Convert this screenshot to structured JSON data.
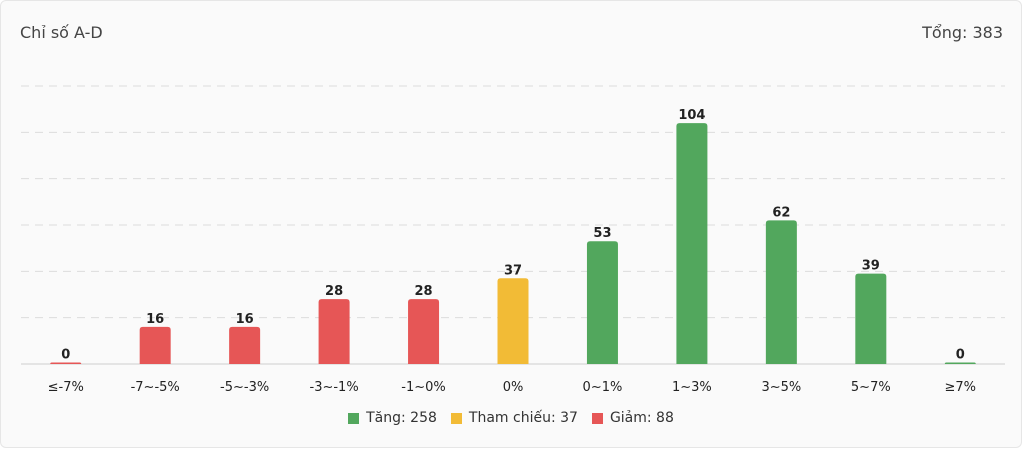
{
  "header": {
    "title": "Chỉ số A-D",
    "total_text": "Tổng: 383"
  },
  "colors": {
    "up": "#52a75d",
    "ref": "#f2bb36",
    "down": "#e65656"
  },
  "legend": [
    {
      "label": "Tăng: 258",
      "color_key": "up"
    },
    {
      "label": "Tham chiếu: 37",
      "color_key": "ref"
    },
    {
      "label": "Giảm: 88",
      "color_key": "down"
    }
  ],
  "chart_data": {
    "type": "bar",
    "title": "Chỉ số A-D",
    "xlabel": "",
    "ylabel": "",
    "categories": [
      "≤-7%",
      "-7~-5%",
      "-5~-3%",
      "-3~-1%",
      "-1~0%",
      "0%",
      "0~1%",
      "1~3%",
      "3~5%",
      "5~7%",
      "≥7%"
    ],
    "values": [
      0,
      16,
      16,
      28,
      28,
      37,
      53,
      104,
      62,
      39,
      0
    ],
    "bar_colors": [
      "down",
      "down",
      "down",
      "down",
      "down",
      "ref",
      "up",
      "up",
      "up",
      "up",
      "up"
    ],
    "ylim": [
      0,
      120
    ],
    "grid": true,
    "legend_position": "bottom"
  }
}
